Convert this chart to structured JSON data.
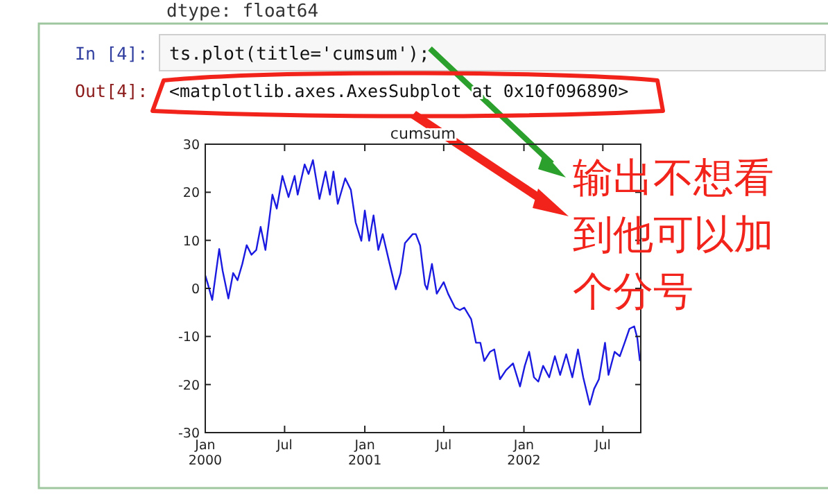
{
  "chart_data": {
    "type": "line",
    "title": "cumsum",
    "x": [
      "2000-01-01",
      "2000-01-06",
      "2000-01-17",
      "2000-02-02",
      "2000-02-10",
      "2000-02-23",
      "2000-03-05",
      "2000-03-15",
      "2000-03-26",
      "2000-04-05",
      "2000-04-16",
      "2000-04-27",
      "2000-05-07",
      "2000-05-18",
      "2000-06-03",
      "2000-06-13",
      "2000-06-26",
      "2000-07-10",
      "2000-07-24",
      "2000-07-31",
      "2000-08-16",
      "2000-08-25",
      "2000-09-04",
      "2000-09-19",
      "2000-10-03",
      "2000-10-13",
      "2000-10-21",
      "2000-10-31",
      "2000-11-17",
      "2000-11-30",
      "2000-12-11",
      "2000-12-24",
      "2001-01-01",
      "2001-01-11",
      "2001-01-21",
      "2001-02-01",
      "2001-02-11",
      "2001-02-27",
      "2001-03-13",
      "2001-03-24",
      "2001-04-03",
      "2001-04-21",
      "2001-04-28",
      "2001-05-08",
      "2001-05-19",
      "2001-05-24",
      "2001-06-04",
      "2001-06-15",
      "2001-07-01",
      "2001-07-11",
      "2001-07-27",
      "2001-08-07",
      "2001-08-17",
      "2001-09-02",
      "2001-09-13",
      "2001-09-23",
      "2001-10-02",
      "2001-10-15",
      "2001-10-25",
      "2001-11-07",
      "2001-11-21",
      "2001-12-07",
      "2001-12-23",
      "2002-01-03",
      "2002-01-13",
      "2002-01-24",
      "2002-02-03",
      "2002-02-14",
      "2002-02-28",
      "2002-03-13",
      "2002-03-25",
      "2002-04-08",
      "2002-04-22",
      "2002-05-05",
      "2002-05-17",
      "2002-06-01",
      "2002-06-11",
      "2002-06-22",
      "2002-07-06",
      "2002-07-14",
      "2002-07-28",
      "2002-08-09",
      "2002-08-20",
      "2002-08-31",
      "2002-09-11",
      "2002-09-18",
      "2002-09-24"
    ],
    "series": [
      {
        "color": "#1a1ae0",
        "values": [
          2.7,
          1.2,
          -2.4,
          8.2,
          3.6,
          -2.1,
          3.2,
          1.7,
          5.1,
          9,
          7,
          8,
          12.8,
          8,
          19.5,
          16.6,
          23.4,
          19,
          23.4,
          19.5,
          25.8,
          23.8,
          26.7,
          18.6,
          24.3,
          19.5,
          24.3,
          17.6,
          22.9,
          20.5,
          13.7,
          9.9,
          16.2,
          9.9,
          15.2,
          8,
          11.3,
          5.1,
          -0.2,
          3.2,
          9.4,
          11.3,
          11.3,
          8.9,
          0.8,
          -0.2,
          5.1,
          -1.1,
          1.3,
          -1.1,
          -4,
          -4.5,
          -4,
          -6.4,
          -11.3,
          -11.3,
          -15.1,
          -13.2,
          -12.7,
          -18.9,
          -17,
          -15.6,
          -20.4,
          -16.1,
          -13.2,
          -18.5,
          -19.4,
          -16.1,
          -18.5,
          -14.1,
          -18,
          -13.7,
          -18.5,
          -12.7,
          -18.5,
          -24.2,
          -20.9,
          -18.9,
          -11.3,
          -18,
          -13.2,
          -14.1,
          -11.3,
          -8.4,
          -7.9,
          -10.3,
          -15.1
        ]
      }
    ],
    "xlim": [
      "2000-01-01",
      "2002-09-26"
    ],
    "xticks": [
      {
        "value": "2000-01-01",
        "label": "Jan\n2000"
      },
      {
        "value": "2000-07-01",
        "label": "Jul"
      },
      {
        "value": "2001-01-01",
        "label": "Jan\n2001"
      },
      {
        "value": "2001-07-01",
        "label": "Jul"
      },
      {
        "value": "2002-01-01",
        "label": "Jan\n2002"
      },
      {
        "value": "2002-07-01",
        "label": "Jul"
      }
    ],
    "ylim": [
      -30,
      30
    ],
    "yticks": [
      -30,
      -20,
      -10,
      0,
      10,
      20,
      30
    ],
    "grid": false,
    "annotations": [
      "dtype: float64",
      "In [4]:",
      "ts.plot(title='cumsum');",
      "Out[4]:",
      "<matplotlib.axes.AxesSubplot at 0x10f096890>",
      "输出不想看到他可以加个分号"
    ]
  }
}
